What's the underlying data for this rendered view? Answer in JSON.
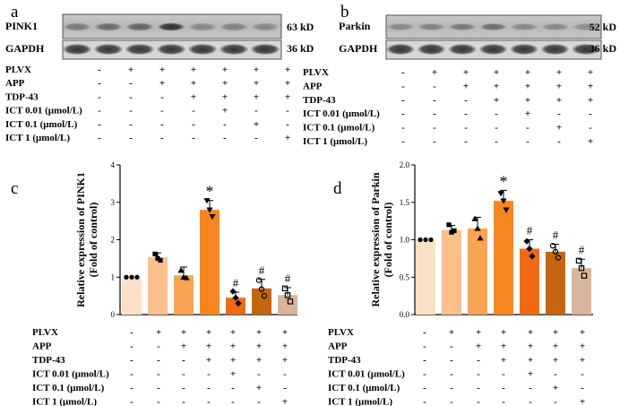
{
  "panel_letters": [
    "a",
    "b",
    "c",
    "d"
  ],
  "blot_a": {
    "target": "PINK1",
    "target_size": "63 kD",
    "control": "GAPDH",
    "control_size": "36 kD"
  },
  "blot_b": {
    "target": "Parkin",
    "target_size": "52 kD",
    "control": "GAPDH",
    "control_size": "36 kD"
  },
  "treatments": {
    "labels": [
      "PLVX",
      "APP",
      "TDP-43",
      "ICT 0.01 (μmol/L)",
      "ICT 0.1 (μmol/L)",
      "ICT 1 (μmol/L)"
    ],
    "rows": [
      [
        "-",
        "+",
        "+",
        "+",
        "+",
        "+",
        "+"
      ],
      [
        "-",
        "-",
        "+",
        "+",
        "+",
        "+",
        "+"
      ],
      [
        "-",
        "-",
        "-",
        "+",
        "+",
        "+",
        "+"
      ],
      [
        "-",
        "-",
        "-",
        "-",
        "+",
        "-",
        "-"
      ],
      [
        "-",
        "-",
        "-",
        "-",
        "-",
        "+",
        "-"
      ],
      [
        "-",
        "-",
        "-",
        "-",
        "-",
        "-",
        "+"
      ]
    ]
  },
  "chart_data": [
    {
      "type": "bar",
      "panel": "c",
      "ylabel_line1": "Relative expression of PINK1",
      "ylabel_line2": "(Fold of control)",
      "ylim": [
        0,
        4
      ],
      "yticks": [
        "0",
        "1",
        "2",
        "3",
        "4"
      ],
      "values": [
        1.0,
        1.53,
        1.05,
        2.8,
        0.45,
        0.7,
        0.52
      ],
      "errors": [
        0.0,
        0.12,
        0.22,
        0.25,
        0.15,
        0.24,
        0.2
      ],
      "colors": [
        "#fde1c7",
        "#fbc18d",
        "#f9a455",
        "#f7861f",
        "#f06a14",
        "#c4650f",
        "#d9b59b"
      ],
      "annotations": [
        "",
        "",
        "",
        "*",
        "#",
        "#",
        "#"
      ],
      "points": [
        [
          1.0,
          1.0,
          1.0
        ],
        [
          1.62,
          1.5,
          1.45
        ],
        [
          1.18,
          1.0,
          0.98
        ],
        [
          3.05,
          2.8,
          2.62
        ],
        [
          0.62,
          0.45,
          0.3
        ],
        [
          0.92,
          0.68,
          0.5
        ],
        [
          0.7,
          0.52,
          0.35
        ]
      ],
      "markers": [
        "circle",
        "square",
        "triangle",
        "triangle-down",
        "diamond",
        "circle-open",
        "square-open"
      ]
    },
    {
      "type": "bar",
      "panel": "d",
      "ylabel_line1": "Relative expression of Parkin",
      "ylabel_line2": "(Fold of control)",
      "ylim": [
        0,
        2.0
      ],
      "yticks": [
        "0.0",
        "0.5",
        "1.0",
        "1.5",
        "2.0"
      ],
      "values": [
        1.0,
        1.13,
        1.15,
        1.52,
        0.88,
        0.84,
        0.62
      ],
      "errors": [
        0.0,
        0.06,
        0.15,
        0.14,
        0.12,
        0.1,
        0.12
      ],
      "colors": [
        "#fde1c7",
        "#fbc18d",
        "#f9a455",
        "#f7861f",
        "#f06a14",
        "#c4650f",
        "#d9b59b"
      ],
      "annotations": [
        "",
        "",
        "",
        "*",
        "#",
        "#",
        "#"
      ],
      "points": [
        [
          1.0,
          1.0,
          1.0
        ],
        [
          1.2,
          1.1,
          1.12
        ],
        [
          1.28,
          1.15,
          1.02
        ],
        [
          1.62,
          1.52,
          1.4
        ],
        [
          0.98,
          0.88,
          0.78
        ],
        [
          0.92,
          0.84,
          0.76
        ],
        [
          0.72,
          0.62,
          0.52
        ]
      ],
      "markers": [
        "circle",
        "square",
        "triangle",
        "triangle-down",
        "diamond",
        "circle-open",
        "square-open"
      ]
    }
  ]
}
